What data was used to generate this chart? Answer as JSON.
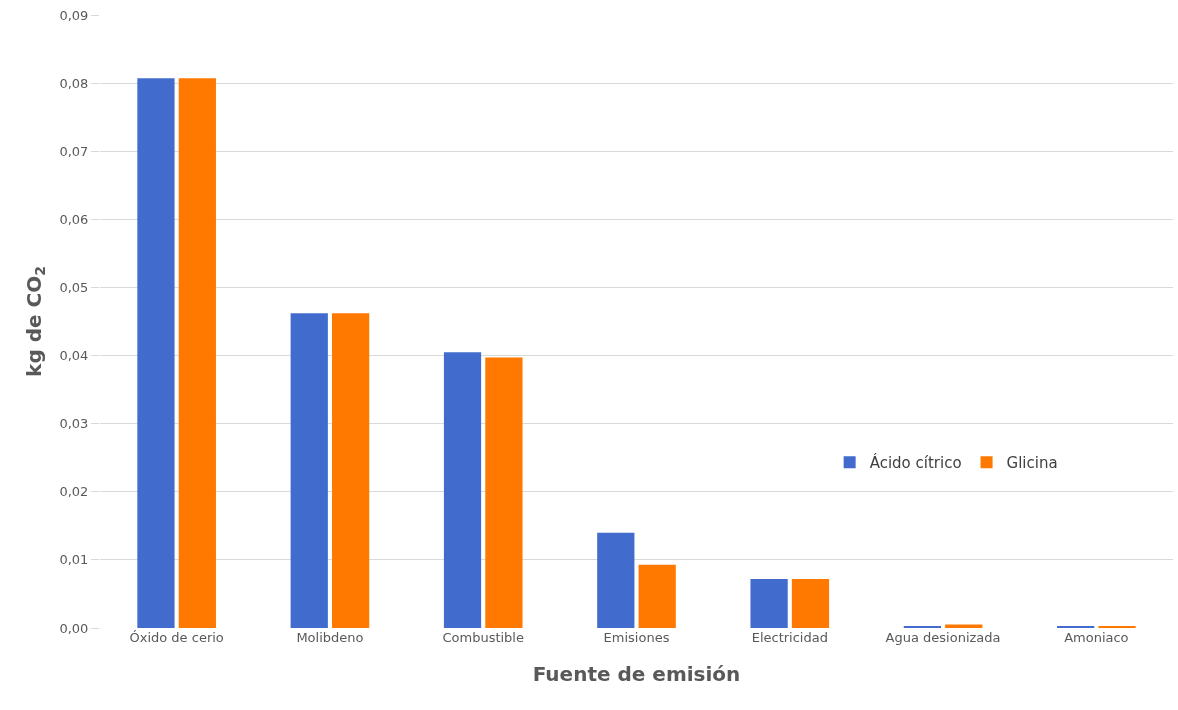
{
  "chart_data": {
    "type": "bar",
    "xlabel": "Fuente de emisión",
    "ylabel": "kg de CO$_{2}$",
    "categories": [
      "Óxido de cerio",
      "Molibdeno",
      "Combustible",
      "Emisiones",
      "Electricidad",
      "Agua desionizada",
      "Amoniaco"
    ],
    "series": [
      {
        "name": "Ácido cítrico",
        "color": "#416bcc",
        "values": [
          0.0807,
          0.0462,
          0.0405,
          0.014,
          0.0072,
          0.0003,
          0.0003
        ]
      },
      {
        "name": "Glicina",
        "color": "#ff7900",
        "values": [
          0.0807,
          0.0462,
          0.0397,
          0.0093,
          0.0072,
          0.0005,
          0.0003
        ]
      }
    ],
    "ylim": [
      0,
      0.09
    ],
    "yticks": [
      {
        "value": 0,
        "label": "0,00"
      },
      {
        "value": 0.01,
        "label": "0,01"
      },
      {
        "value": 0.02,
        "label": "0,02"
      },
      {
        "value": 0.03,
        "label": "0,03"
      },
      {
        "value": 0.04,
        "label": "0,04"
      },
      {
        "value": 0.05,
        "label": "0,05"
      },
      {
        "value": 0.06,
        "label": "0,06"
      },
      {
        "value": 0.07,
        "label": "0,07"
      },
      {
        "value": 0.08,
        "label": "0,08"
      },
      {
        "value": 0.09,
        "label": "0,09"
      }
    ],
    "grid": "y",
    "legend": "right"
  }
}
